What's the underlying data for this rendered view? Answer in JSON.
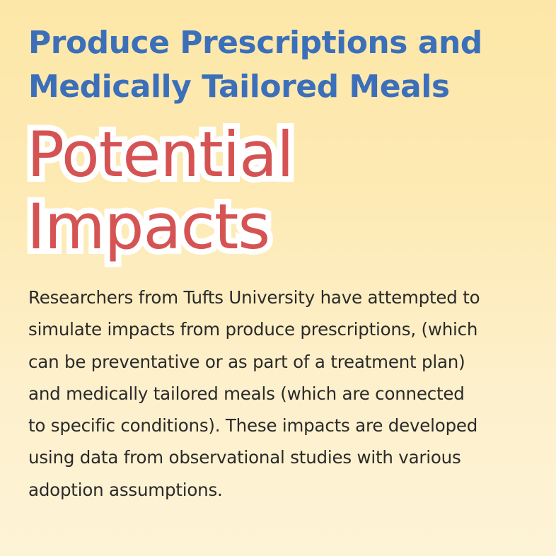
{
  "title": {
    "lines": [
      "Produce Prescriptions and",
      "Medically Tailored Meals"
    ]
  },
  "subtitle": {
    "lines": [
      "Potential",
      "Impacts"
    ]
  },
  "body": {
    "lines": [
      "Researchers from Tufts University have attempted to",
      "simulate impacts from produce prescriptions, (which",
      "can be preventative or as part of a treatment plan)",
      "and medically tailored meals (which are connected",
      "to specific conditions). These impacts are developed",
      "using data from observational studies with various",
      "adoption assumptions."
    ]
  },
  "colors": {
    "title": "#3c6fba",
    "subtitle": "#d65353",
    "subtitle_outline": "#ffffff",
    "body": "#2a2a2a",
    "background_top": "#fde7a8",
    "background_bottom": "#fdf3d6"
  }
}
